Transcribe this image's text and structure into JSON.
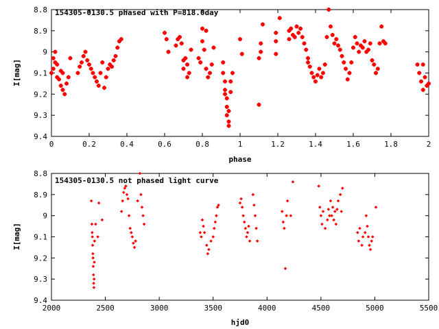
{
  "chart_data": [
    {
      "type": "scatter",
      "title": "154305-0130.5 phased with P=818.0day",
      "xlabel": "phase",
      "ylabel": "I[mag]",
      "xlim": [
        0,
        2
      ],
      "ylim": [
        9.4,
        8.8
      ],
      "y_inverted": true,
      "xticks": [
        0,
        0.2,
        0.4,
        0.6,
        0.8,
        1,
        1.2,
        1.4,
        1.6,
        1.8,
        2
      ],
      "xtick_labels": [
        "0",
        "0.2",
        "0.4",
        "0.6",
        "0.8",
        "1",
        "1.2",
        "1.4",
        "1.6",
        "1.8",
        "2"
      ],
      "yticks": [
        8.8,
        8.9,
        9,
        9.1,
        9.2,
        9.3,
        9.4
      ],
      "ytick_labels": [
        "8.8",
        "8.9",
        "9",
        "9.1",
        "9.2",
        "9.3",
        "9.4"
      ],
      "grid": false,
      "marker_color": "#ff0000",
      "marker": "star",
      "points": [
        [
          0.0,
          9.1
        ],
        [
          0.01,
          9.08
        ],
        [
          0.01,
          9.03
        ],
        [
          0.02,
          9.0
        ],
        [
          0.02,
          9.05
        ],
        [
          0.03,
          9.06
        ],
        [
          0.03,
          9.12
        ],
        [
          0.04,
          9.13
        ],
        [
          0.05,
          9.09
        ],
        [
          0.05,
          9.16
        ],
        [
          0.06,
          9.1
        ],
        [
          0.06,
          9.18
        ],
        [
          0.07,
          9.2
        ],
        [
          0.08,
          9.15
        ],
        [
          0.09,
          9.12
        ],
        [
          0.1,
          9.03
        ],
        [
          0.14,
          9.1
        ],
        [
          0.15,
          9.07
        ],
        [
          0.16,
          9.05
        ],
        [
          0.17,
          9.02
        ],
        [
          0.18,
          9.0
        ],
        [
          0.19,
          9.04
        ],
        [
          0.2,
          9.06
        ],
        [
          0.21,
          9.08
        ],
        [
          0.22,
          9.1
        ],
        [
          0.23,
          9.12
        ],
        [
          0.24,
          9.14
        ],
        [
          0.25,
          9.16
        ],
        [
          0.26,
          9.1
        ],
        [
          0.27,
          9.05
        ],
        [
          0.28,
          9.17
        ],
        [
          0.29,
          9.12
        ],
        [
          0.3,
          9.08
        ],
        [
          0.31,
          9.06
        ],
        [
          0.32,
          9.07
        ],
        [
          0.33,
          9.04
        ],
        [
          0.34,
          9.02
        ],
        [
          0.35,
          8.98
        ],
        [
          0.36,
          8.95
        ],
        [
          0.37,
          8.94
        ],
        [
          0.6,
          8.91
        ],
        [
          0.61,
          8.94
        ],
        [
          0.62,
          9.0
        ],
        [
          0.66,
          8.97
        ],
        [
          0.67,
          8.94
        ],
        [
          0.68,
          8.93
        ],
        [
          0.69,
          8.96
        ],
        [
          0.7,
          9.04
        ],
        [
          0.7,
          9.08
        ],
        [
          0.71,
          9.03
        ],
        [
          0.72,
          9.06
        ],
        [
          0.72,
          9.12
        ],
        [
          0.73,
          9.1
        ],
        [
          0.74,
          8.99
        ],
        [
          0.78,
          9.03
        ],
        [
          0.79,
          9.05
        ],
        [
          0.8,
          8.89
        ],
        [
          0.8,
          8.95
        ],
        [
          0.81,
          8.99
        ],
        [
          0.82,
          8.9
        ],
        [
          0.82,
          9.08
        ],
        [
          0.83,
          9.12
        ],
        [
          0.84,
          9.1
        ],
        [
          0.85,
          9.06
        ],
        [
          0.86,
          8.98
        ],
        [
          0.91,
          9.05
        ],
        [
          0.91,
          9.1
        ],
        [
          0.92,
          9.14
        ],
        [
          0.92,
          9.18
        ],
        [
          0.92,
          9.2
        ],
        [
          0.93,
          9.22
        ],
        [
          0.93,
          9.26
        ],
        [
          0.93,
          9.3
        ],
        [
          0.94,
          9.33
        ],
        [
          0.94,
          9.35
        ],
        [
          0.94,
          9.28
        ],
        [
          0.95,
          9.19
        ],
        [
          0.95,
          9.14
        ],
        [
          0.96,
          9.1
        ],
        [
          1.0,
          8.94
        ],
        [
          1.01,
          9.01
        ],
        [
          1.1,
          9.25
        ],
        [
          1.1,
          9.03
        ],
        [
          1.11,
          8.96
        ],
        [
          1.11,
          9.0
        ],
        [
          1.12,
          8.87
        ],
        [
          1.19,
          8.91
        ],
        [
          1.19,
          8.95
        ],
        [
          1.19,
          9.01
        ],
        [
          1.21,
          8.84
        ],
        [
          1.26,
          8.9
        ],
        [
          1.26,
          8.94
        ],
        [
          1.27,
          8.89
        ],
        [
          1.28,
          8.92
        ],
        [
          1.29,
          8.93
        ],
        [
          1.3,
          8.88
        ],
        [
          1.31,
          8.91
        ],
        [
          1.32,
          8.89
        ],
        [
          1.33,
          8.93
        ],
        [
          1.34,
          8.96
        ],
        [
          1.35,
          8.99
        ],
        [
          1.36,
          9.03
        ],
        [
          1.36,
          9.05
        ],
        [
          1.37,
          9.07
        ],
        [
          1.38,
          9.1
        ],
        [
          1.39,
          9.12
        ],
        [
          1.4,
          9.14
        ],
        [
          1.41,
          9.11
        ],
        [
          1.42,
          9.08
        ],
        [
          1.43,
          9.12
        ],
        [
          1.44,
          9.1
        ],
        [
          1.45,
          9.06
        ],
        [
          1.46,
          8.93
        ],
        [
          1.47,
          8.8
        ],
        [
          1.48,
          8.88
        ],
        [
          1.49,
          8.92
        ],
        [
          1.5,
          8.96
        ],
        [
          1.51,
          8.94
        ],
        [
          1.52,
          8.97
        ],
        [
          1.53,
          8.99
        ],
        [
          1.54,
          9.02
        ],
        [
          1.55,
          9.05
        ],
        [
          1.56,
          9.08
        ],
        [
          1.57,
          9.13
        ],
        [
          1.58,
          9.1
        ],
        [
          1.59,
          9.05
        ],
        [
          1.6,
          8.98
        ],
        [
          1.61,
          8.93
        ],
        [
          1.62,
          8.96
        ],
        [
          1.63,
          9.0
        ],
        [
          1.64,
          8.97
        ],
        [
          1.65,
          8.98
        ],
        [
          1.66,
          8.95
        ],
        [
          1.67,
          9.0
        ],
        [
          1.68,
          8.99
        ],
        [
          1.69,
          8.96
        ],
        [
          1.7,
          9.04
        ],
        [
          1.71,
          9.06
        ],
        [
          1.72,
          9.1
        ],
        [
          1.73,
          9.08
        ],
        [
          1.74,
          8.96
        ],
        [
          1.75,
          8.88
        ],
        [
          1.76,
          8.95
        ],
        [
          1.77,
          8.96
        ],
        [
          1.94,
          9.06
        ],
        [
          1.95,
          9.1
        ],
        [
          1.96,
          9.14
        ],
        [
          1.97,
          9.18
        ],
        [
          1.97,
          9.06
        ],
        [
          1.98,
          9.12
        ],
        [
          1.99,
          9.16
        ],
        [
          2.0,
          9.15
        ]
      ]
    },
    {
      "type": "scatter",
      "title": "154305-0130.5 not phased light curve",
      "xlabel": "hjd0",
      "ylabel": "I[mag]",
      "xlim": [
        2000,
        5500
      ],
      "ylim": [
        9.4,
        8.8
      ],
      "y_inverted": true,
      "xticks": [
        2000,
        2500,
        3000,
        3500,
        4000,
        4500,
        5000,
        5500
      ],
      "xtick_labels": [
        "2000",
        "2500",
        "3000",
        "3500",
        "4000",
        "4500",
        "5000",
        "5500"
      ],
      "yticks": [
        8.8,
        8.9,
        9,
        9.1,
        9.2,
        9.3,
        9.4
      ],
      "ytick_labels": [
        "8.8",
        "8.9",
        "9",
        "9.1",
        "9.2",
        "9.3",
        "9.4"
      ],
      "grid": false,
      "marker_color": "#ff0000",
      "marker": "diamond",
      "points": [
        [
          2370,
          8.93
        ],
        [
          2375,
          9.04
        ],
        [
          2378,
          9.08
        ],
        [
          2380,
          9.1
        ],
        [
          2382,
          9.14
        ],
        [
          2384,
          9.18
        ],
        [
          2386,
          9.2
        ],
        [
          2388,
          9.24
        ],
        [
          2390,
          9.28
        ],
        [
          2392,
          9.32
        ],
        [
          2394,
          9.34
        ],
        [
          2396,
          9.3
        ],
        [
          2398,
          9.22
        ],
        [
          2400,
          9.12
        ],
        [
          2410,
          9.04
        ],
        [
          2430,
          9.1
        ],
        [
          2440,
          8.94
        ],
        [
          2470,
          9.02
        ],
        [
          2650,
          8.98
        ],
        [
          2660,
          8.93
        ],
        [
          2670,
          8.89
        ],
        [
          2680,
          8.87
        ],
        [
          2690,
          8.86
        ],
        [
          2700,
          8.9
        ],
        [
          2710,
          8.92
        ],
        [
          2720,
          9.0
        ],
        [
          2730,
          9.06
        ],
        [
          2740,
          9.08
        ],
        [
          2750,
          9.1
        ],
        [
          2760,
          9.13
        ],
        [
          2770,
          9.15
        ],
        [
          2780,
          9.12
        ],
        [
          2800,
          8.93
        ],
        [
          2820,
          8.8
        ],
        [
          2830,
          8.9
        ],
        [
          2840,
          8.96
        ],
        [
          2850,
          9.0
        ],
        [
          2860,
          9.04
        ],
        [
          3380,
          9.08
        ],
        [
          3390,
          9.1
        ],
        [
          3400,
          9.02
        ],
        [
          3410,
          9.05
        ],
        [
          3420,
          9.08
        ],
        [
          3440,
          9.14
        ],
        [
          3450,
          9.18
        ],
        [
          3460,
          9.16
        ],
        [
          3480,
          9.12
        ],
        [
          3500,
          9.1
        ],
        [
          3510,
          9.06
        ],
        [
          3520,
          9.03
        ],
        [
          3530,
          9.0
        ],
        [
          3540,
          8.96
        ],
        [
          3550,
          8.95
        ],
        [
          3750,
          8.94
        ],
        [
          3760,
          8.92
        ],
        [
          3770,
          8.96
        ],
        [
          3780,
          9.0
        ],
        [
          3790,
          9.03
        ],
        [
          3800,
          9.06
        ],
        [
          3810,
          9.1
        ],
        [
          3820,
          9.08
        ],
        [
          3830,
          9.05
        ],
        [
          3840,
          9.12
        ],
        [
          3870,
          8.9
        ],
        [
          3880,
          8.95
        ],
        [
          3890,
          9.0
        ],
        [
          3900,
          9.06
        ],
        [
          3910,
          9.12
        ],
        [
          4140,
          8.98
        ],
        [
          4150,
          9.03
        ],
        [
          4160,
          9.06
        ],
        [
          4170,
          9.25
        ],
        [
          4180,
          9.0
        ],
        [
          4190,
          8.93
        ],
        [
          4220,
          9.0
        ],
        [
          4240,
          8.84
        ],
        [
          4480,
          8.86
        ],
        [
          4490,
          8.96
        ],
        [
          4500,
          9.0
        ],
        [
          4510,
          9.04
        ],
        [
          4520,
          8.98
        ],
        [
          4540,
          9.06
        ],
        [
          4560,
          9.02
        ],
        [
          4570,
          8.97
        ],
        [
          4580,
          9.0
        ],
        [
          4590,
          8.93
        ],
        [
          4600,
          9.0
        ],
        [
          4610,
          8.96
        ],
        [
          4620,
          9.02
        ],
        [
          4630,
          8.98
        ],
        [
          4640,
          9.04
        ],
        [
          4650,
          8.97
        ],
        [
          4660,
          8.93
        ],
        [
          4680,
          8.9
        ],
        [
          4690,
          8.98
        ],
        [
          4700,
          8.87
        ],
        [
          4840,
          9.08
        ],
        [
          4850,
          9.12
        ],
        [
          4860,
          9.06
        ],
        [
          4880,
          9.14
        ],
        [
          4890,
          9.1
        ],
        [
          4910,
          9.08
        ],
        [
          4920,
          9.0
        ],
        [
          4930,
          9.05
        ],
        [
          4940,
          9.1
        ],
        [
          4950,
          9.14
        ],
        [
          4960,
          9.16
        ],
        [
          4970,
          9.12
        ],
        [
          4980,
          9.1
        ],
        [
          5010,
          8.96
        ]
      ]
    }
  ]
}
